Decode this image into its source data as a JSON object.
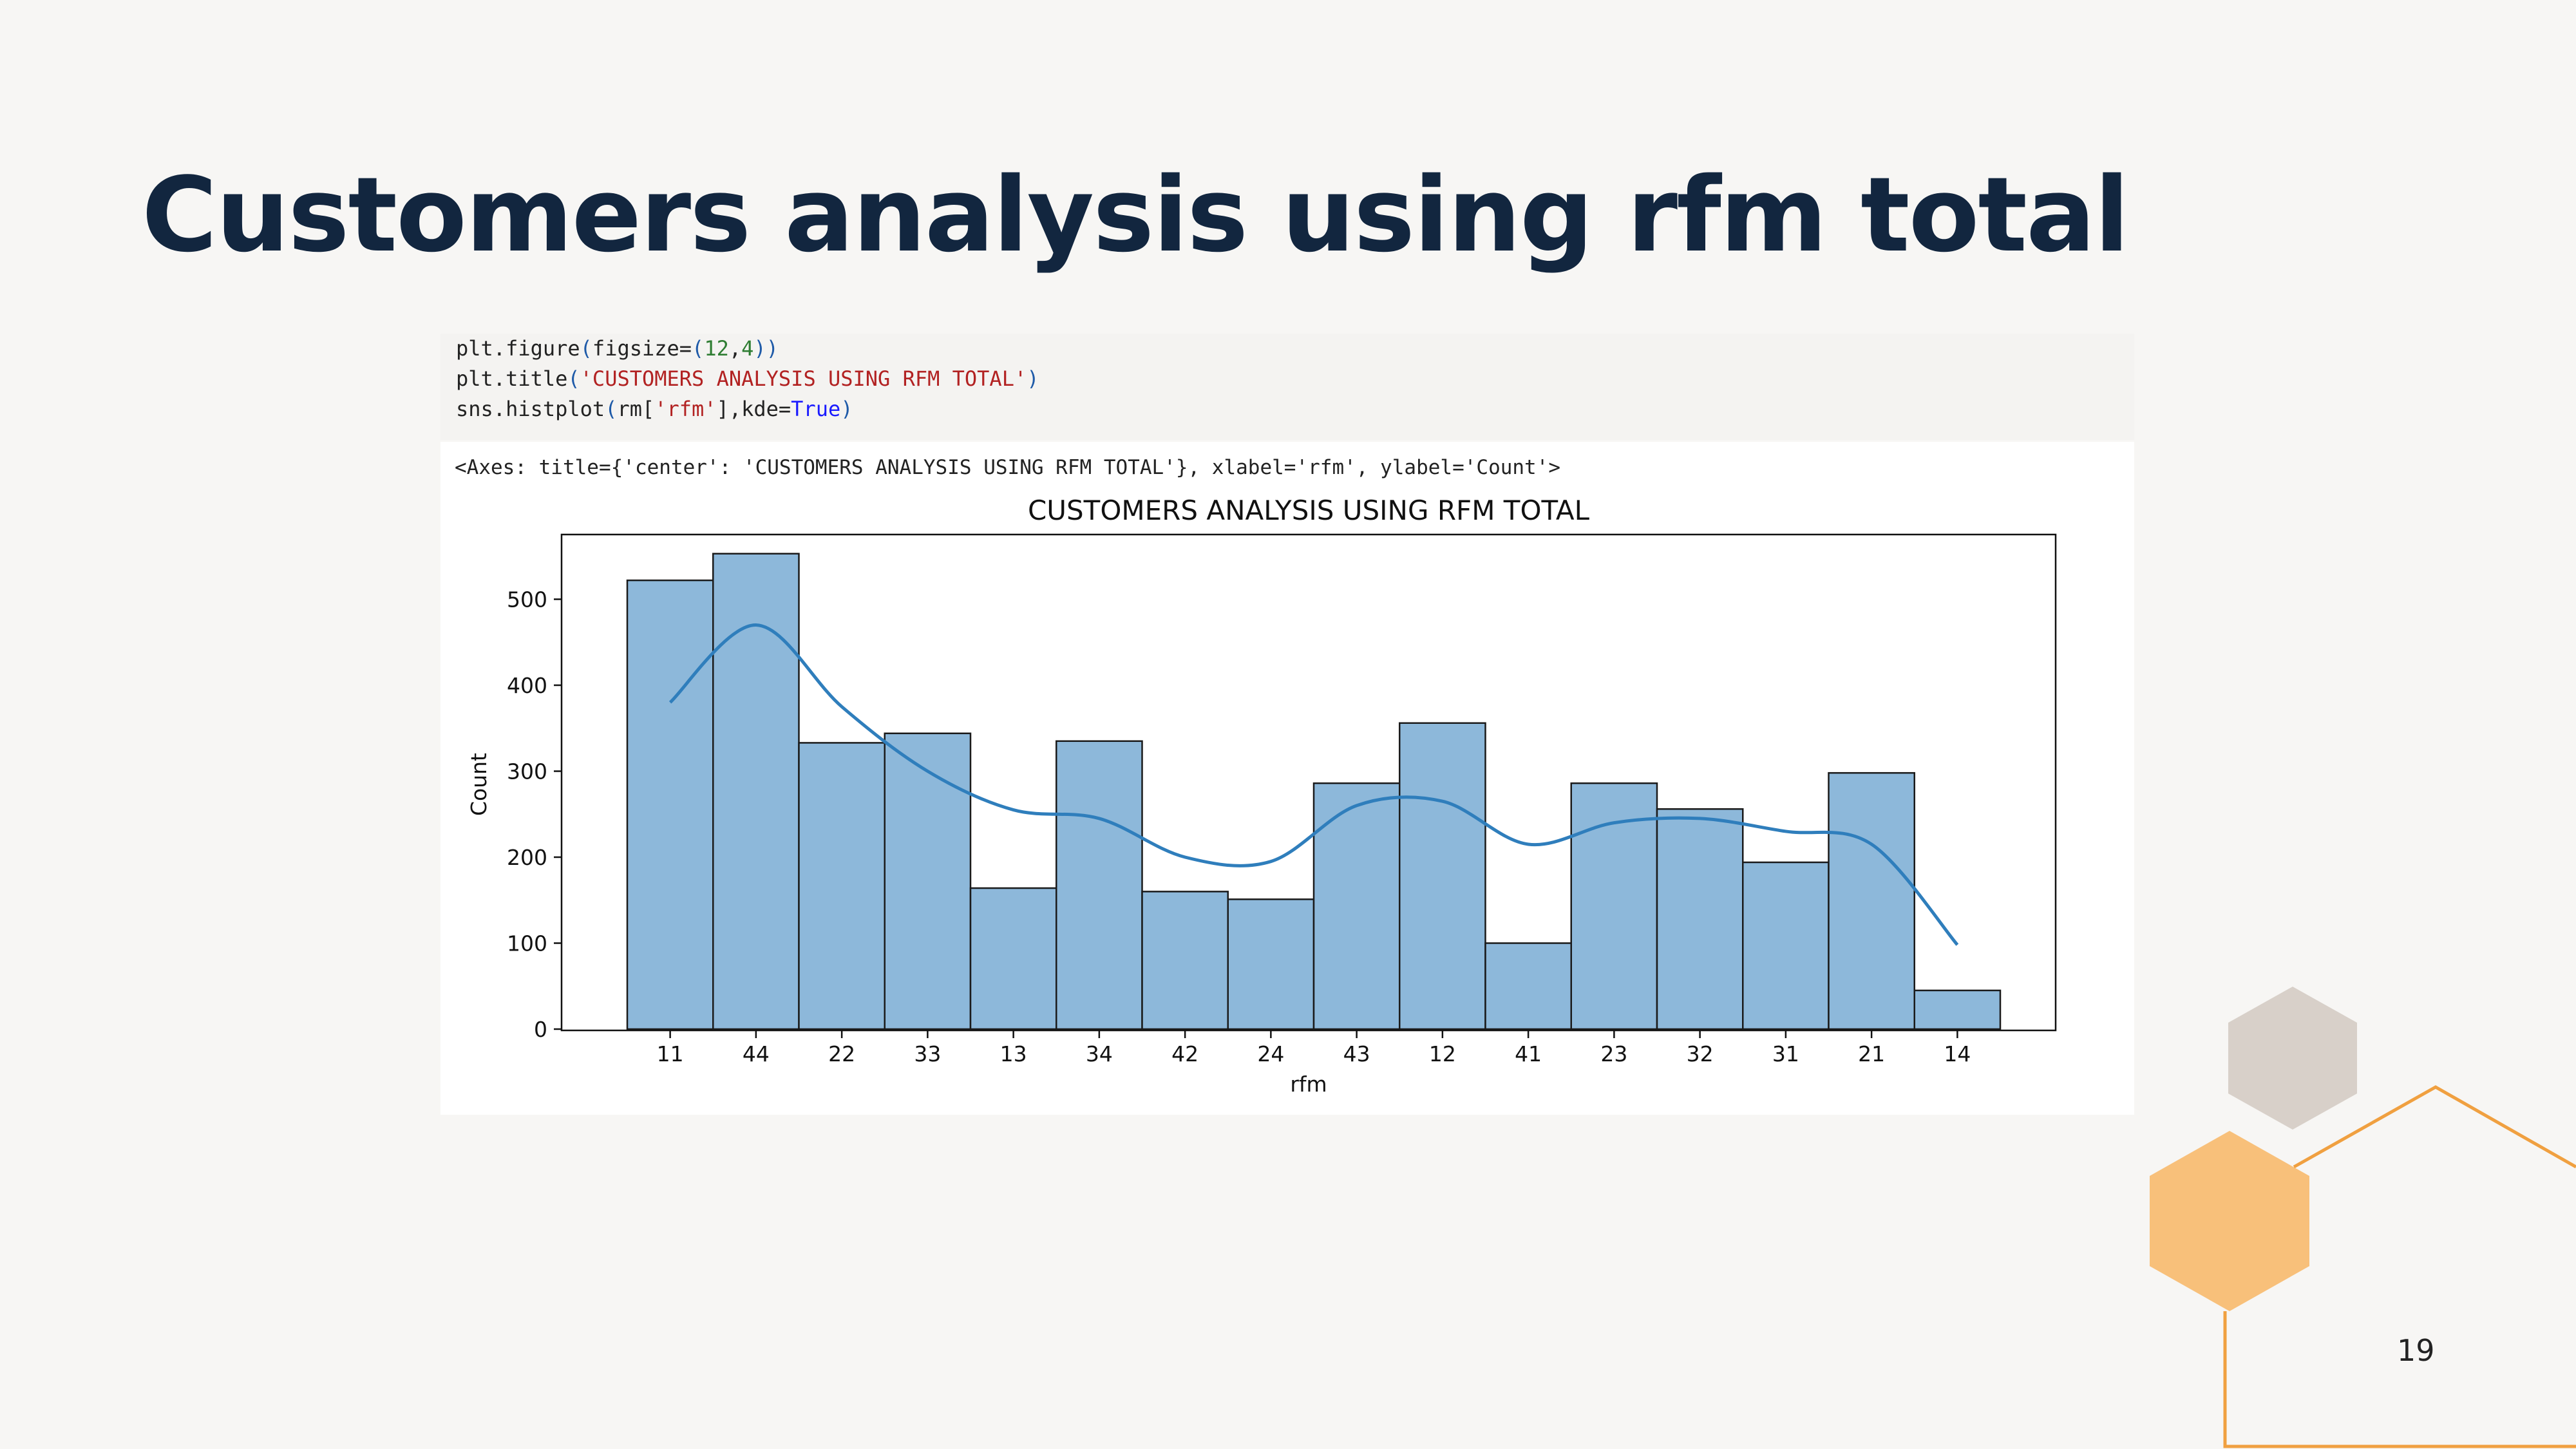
{
  "slide": {
    "title": "Customers analysis using rfm total",
    "page_number": "19"
  },
  "code": {
    "line1": {
      "a": "plt.figure",
      "b": "(",
      "c": "figsize=",
      "d": "(",
      "e": "12",
      "f": ",",
      "g": "4",
      "h": ")",
      "i": ")"
    },
    "line2": {
      "a": "plt.title",
      "b": "(",
      "c": "'CUSTOMERS ANALYSIS USING RFM TOTAL'",
      "d": ")"
    },
    "line3": {
      "a": "sns.histplot",
      "b": "(",
      "c": "rm[",
      "d": "'rfm'",
      "e": "],kde=",
      "f": "True",
      "g": ")"
    }
  },
  "output": {
    "repr": "<Axes: title={'center': 'CUSTOMERS ANALYSIS USING RFM TOTAL'}, xlabel='rfm', ylabel='Count'>"
  },
  "colors": {
    "bar_fill": "#8db8da",
    "bar_edge": "#1a1a1a",
    "kde_line": "#2f7ebc",
    "title_text": "#12263f",
    "hex_gray": "#d8d0c9",
    "hex_orange": "#f8c07a",
    "outline_orange": "#f0a040"
  },
  "chart_data": {
    "type": "bar",
    "title": "CUSTOMERS ANALYSIS USING RFM TOTAL",
    "xlabel": "rfm",
    "ylabel": "Count",
    "categories": [
      "11",
      "44",
      "22",
      "33",
      "13",
      "34",
      "42",
      "24",
      "43",
      "12",
      "41",
      "23",
      "32",
      "31",
      "21",
      "14"
    ],
    "values": [
      522,
      553,
      333,
      344,
      164,
      335,
      160,
      151,
      286,
      356,
      100,
      286,
      256,
      194,
      298,
      45
    ],
    "kde": [
      380,
      470,
      375,
      300,
      255,
      245,
      200,
      195,
      260,
      265,
      215,
      240,
      245,
      230,
      215,
      98
    ],
    "yticks": [
      0,
      100,
      200,
      300,
      400,
      500
    ],
    "ylim": [
      0,
      580
    ],
    "grid": false,
    "legend": "none"
  }
}
